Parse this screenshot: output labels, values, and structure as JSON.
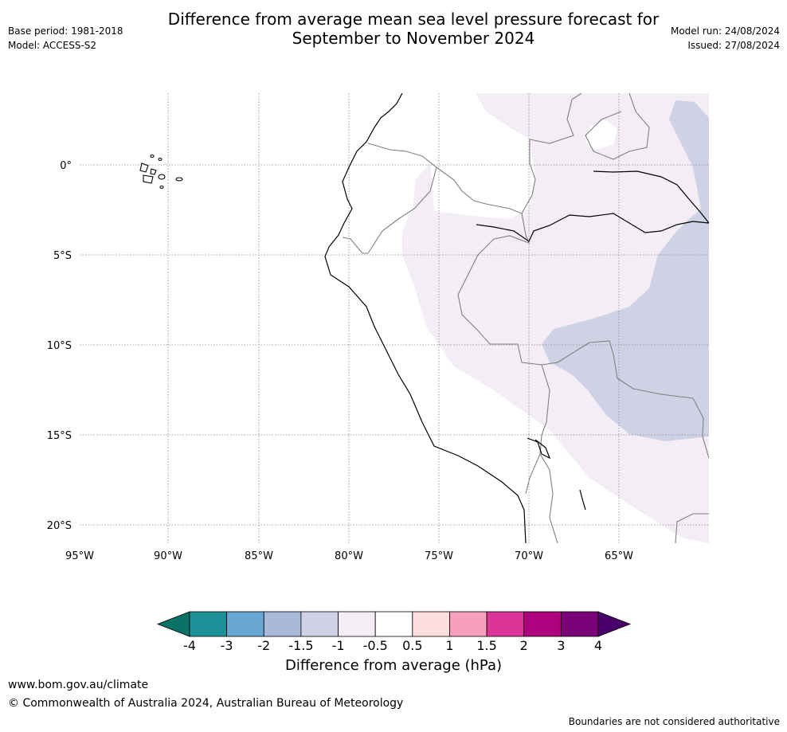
{
  "title_line1": "Difference from average mean sea level pressure forecast for",
  "title_line2": "September to November 2024",
  "meta_left": {
    "base_period": "Base period: 1981-2018",
    "model": "Model: ACCESS-S2"
  },
  "meta_right": {
    "model_run": "Model run: 24/08/2024",
    "issued": "Issued: 27/08/2024"
  },
  "map": {
    "lat_labels": [
      "0°",
      "5°S",
      "10°S",
      "15°S",
      "20°S"
    ],
    "lon_labels": [
      "95°W",
      "90°W",
      "85°W",
      "80°W",
      "75°W",
      "70°W",
      "65°W"
    ],
    "colors": {
      "anomaly_-0.5_to_-1": "#f3edf5",
      "anomaly_-1_to_-1.5": "#cfd1e5",
      "coastline": "#000000",
      "boundaries": "#808080"
    }
  },
  "colorbar": {
    "title": "Difference from average (hPa)",
    "ticks": [
      "-4",
      "-3",
      "-2",
      "-1.5",
      "-1",
      "-0.5",
      "0.5",
      "1",
      "1.5",
      "2",
      "3",
      "4"
    ],
    "colors": [
      "#0a7167",
      "#1b9097",
      "#69a8d2",
      "#a9b9d8",
      "#cfd1e5",
      "#f3edf5",
      "#ffffff",
      "#fdddde",
      "#f7a0bc",
      "#dd3597",
      "#ae017e",
      "#7a0177",
      "#49006a"
    ]
  },
  "footer": {
    "url": "www.bom.gov.au/climate",
    "copyright": "© Commonwealth of Australia 2024, Australian Bureau of Meteorology",
    "disclaimer": "Boundaries are not considered authoritative"
  }
}
